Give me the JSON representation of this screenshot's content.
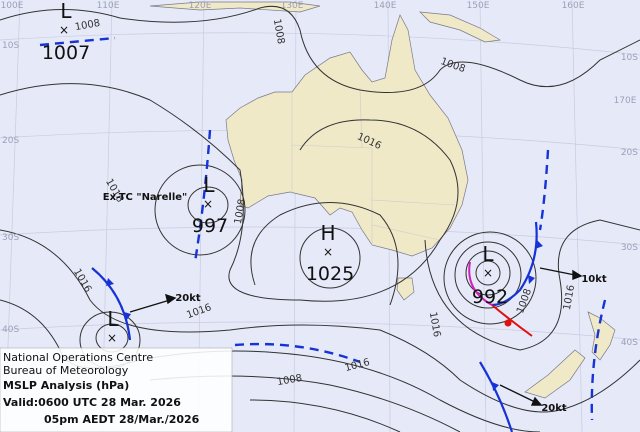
{
  "graticule": {
    "lon_labels": [
      "100E",
      "110E",
      "120E",
      "130E",
      "140E",
      "150E",
      "160E",
      "170E"
    ],
    "lat_labels_left": [
      "10S",
      "20S",
      "30S",
      "40S"
    ],
    "lat_labels_right": [
      "10S",
      "20S",
      "30S",
      "40S"
    ]
  },
  "systems": [
    {
      "kind": "L",
      "pressure": 1007
    },
    {
      "kind": "L",
      "pressure": 997
    },
    {
      "kind": "H",
      "pressure": 1025
    },
    {
      "kind": "L",
      "pressure": 992
    },
    {
      "kind": "L"
    }
  ],
  "isobar_labels": [
    1008,
    1008,
    1008,
    1016,
    1016,
    1008,
    1016,
    1016,
    1016,
    1016,
    1008,
    1016,
    1008
  ],
  "annotations": [
    "Ex-TC \"Narelle\"",
    "20kt",
    "10kt",
    "20kt"
  ],
  "info_box": {
    "line1": "National Operations Centre",
    "line2": "Bureau of Meteorology",
    "title": "MSLP Analysis (hPa)",
    "valid": "Valid:0600 UTC 28 Mar. 2026",
    "local": "05pm AEDT 28/Mar./2026"
  }
}
